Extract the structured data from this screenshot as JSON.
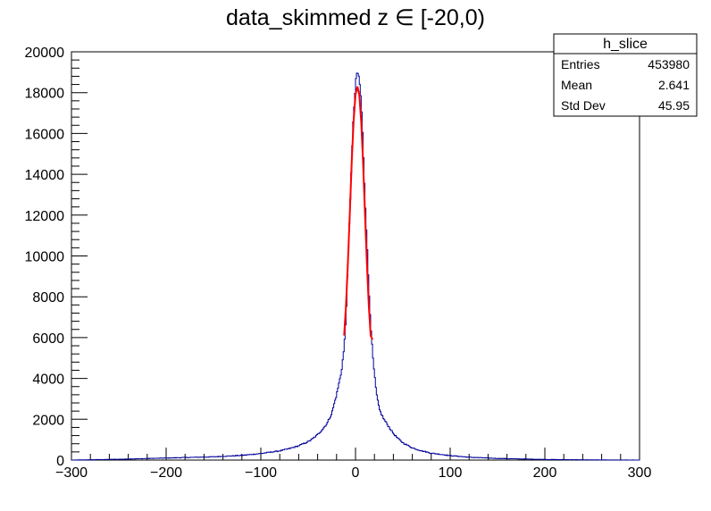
{
  "chart_data": {
    "type": "histogram",
    "title": "data_skimmed z  ∈ [-20,0)",
    "xlabel": "",
    "ylabel": "",
    "xlim": [
      -300,
      300
    ],
    "ylim": [
      0,
      20000
    ],
    "x_ticks": [
      "−300",
      "−200",
      "−100",
      "0",
      "100",
      "200",
      "300"
    ],
    "y_ticks": [
      "0",
      "2000",
      "4000",
      "6000",
      "8000",
      "10000",
      "12000",
      "14000",
      "16000",
      "18000",
      "20000"
    ],
    "grid": false,
    "histogram_color": "#000099",
    "fit_color": "#ff0000",
    "histogram": {
      "x": [
        -300,
        -250,
        -200,
        -150,
        -120,
        -100,
        -80,
        -70,
        -60,
        -50,
        -45,
        -40,
        -35,
        -30,
        -25,
        -20,
        -15,
        -12,
        -10,
        -8,
        -6,
        -4,
        -2,
        0,
        1,
        2,
        3,
        4,
        5,
        6,
        7,
        8,
        10,
        12,
        14,
        16,
        18,
        20,
        22,
        25,
        30,
        35,
        40,
        45,
        50,
        60,
        70,
        80,
        100,
        120,
        150,
        200,
        250,
        300
      ],
      "y": [
        0,
        40,
        100,
        160,
        230,
        320,
        450,
        560,
        700,
        900,
        1050,
        1250,
        1500,
        1800,
        2300,
        3200,
        4300,
        5500,
        7000,
        9500,
        12200,
        14800,
        17000,
        18300,
        18800,
        19000,
        18900,
        18600,
        18200,
        17500,
        16500,
        15500,
        13000,
        10800,
        8500,
        6800,
        5200,
        4200,
        3300,
        2500,
        2000,
        1650,
        1300,
        1050,
        850,
        600,
        450,
        340,
        220,
        140,
        80,
        30,
        10,
        0
      ]
    },
    "fit": {
      "x": [
        -12,
        -10,
        -8,
        -6,
        -4,
        -2,
        0,
        2,
        4,
        6,
        8,
        10,
        12,
        14,
        16,
        18
      ],
      "y": [
        6100,
        7600,
        9700,
        12100,
        14600,
        16600,
        17900,
        18300,
        17900,
        16600,
        14600,
        12100,
        9700,
        7600,
        6100,
        5900
      ]
    },
    "stats_box": {
      "title": "h_slice",
      "rows": [
        {
          "label": "Entries",
          "value": "453980"
        },
        {
          "label": "Mean",
          "value": "2.641"
        },
        {
          "label": "Std Dev",
          "value": "45.95"
        }
      ]
    }
  }
}
